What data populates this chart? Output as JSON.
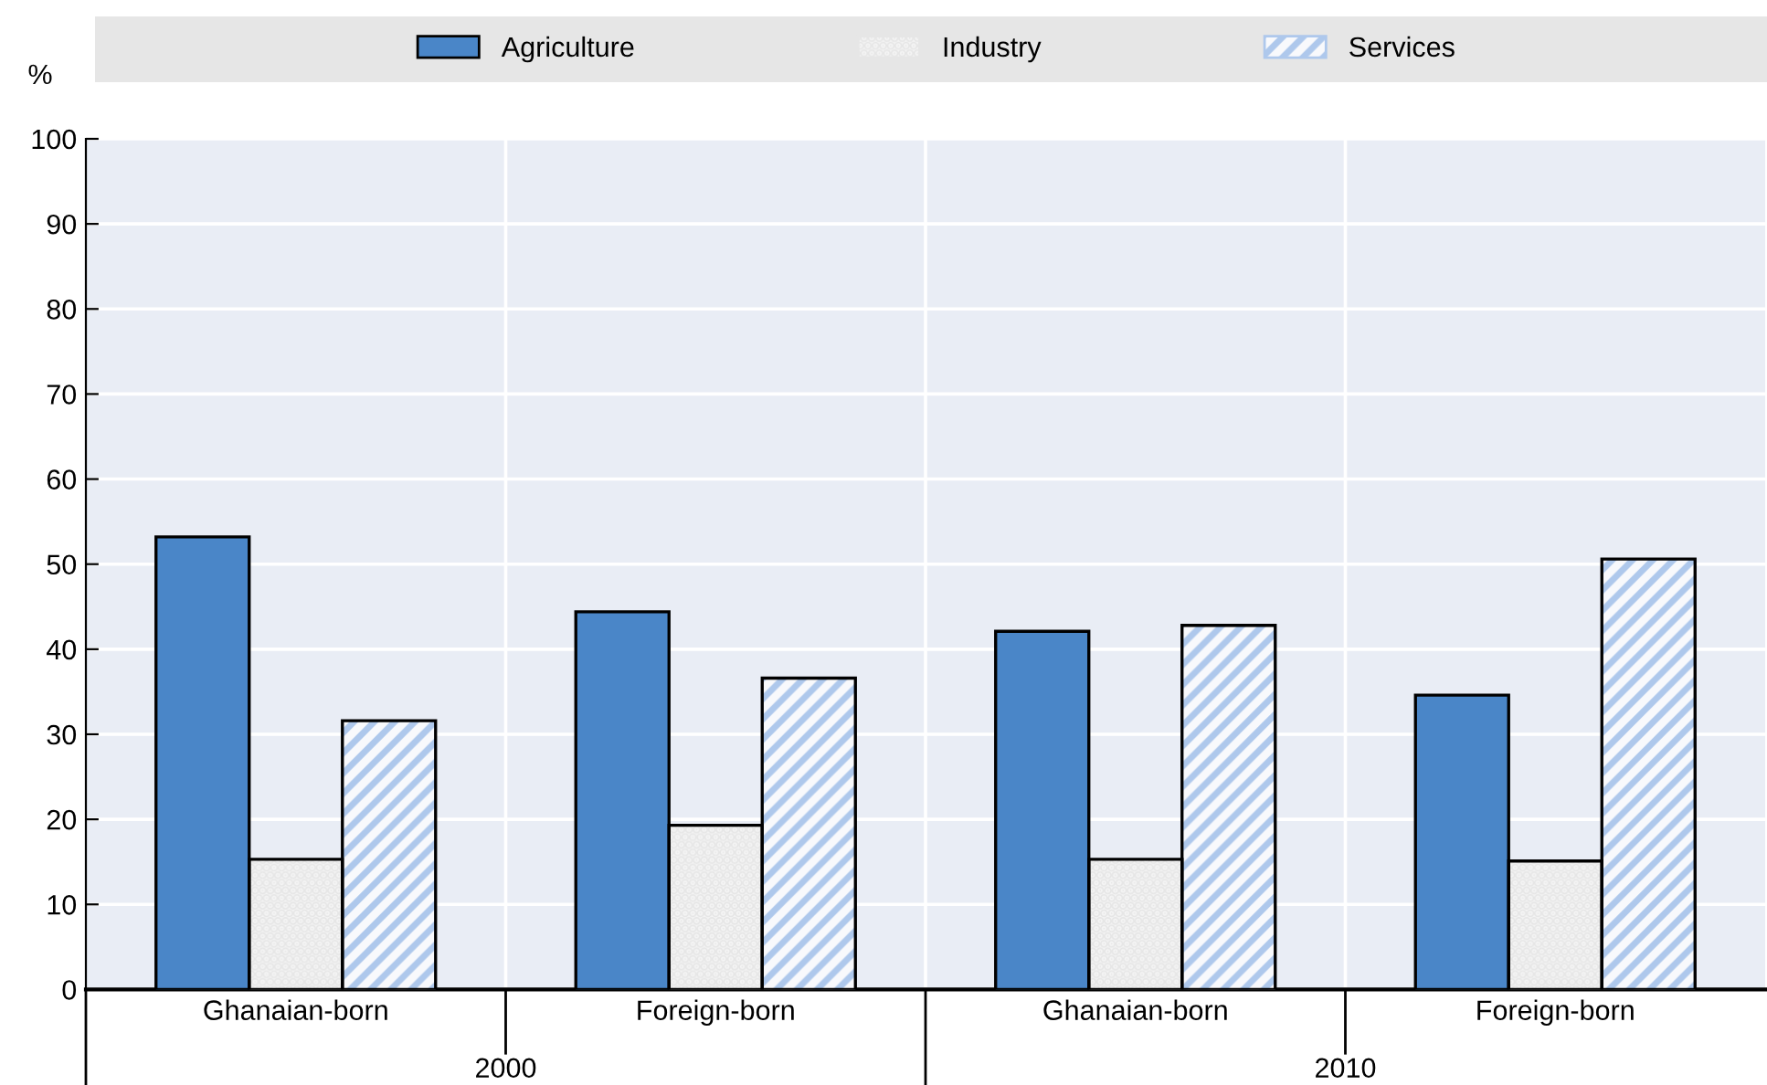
{
  "chart_data": {
    "type": "bar",
    "ylabel": "%",
    "categories": [
      "Ghanaian-born",
      "Foreign-born",
      "Ghanaian-born",
      "Foreign-born"
    ],
    "series": [
      {
        "name": "Agriculture",
        "color": "#4a86c8",
        "values": [
          53.2,
          44.4,
          42.1,
          34.6
        ]
      },
      {
        "name": "Industry",
        "color": "#e6e6e6",
        "values": [
          15.3,
          19.3,
          15.3,
          15.1
        ]
      },
      {
        "name": "Services",
        "color": "#aec8ec",
        "values": [
          31.6,
          36.6,
          42.8,
          50.6
        ]
      }
    ],
    "annotations": [
      "2000",
      "2010"
    ],
    "ylim": [
      0,
      100
    ],
    "yticks": [
      0,
      10,
      20,
      30,
      40,
      50,
      60,
      70,
      80,
      90,
      100
    ],
    "grid": "y",
    "legend": "top"
  }
}
